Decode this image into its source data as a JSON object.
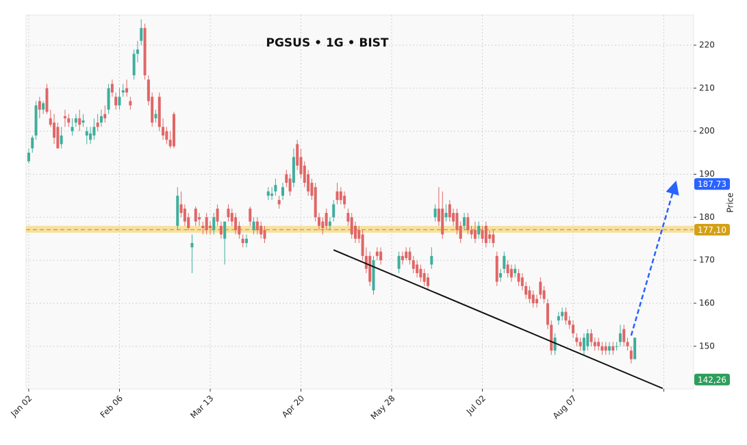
{
  "chart_data": {
    "type": "candlestick",
    "title": "PGSUS • 1G • BIST",
    "y_label": "Price",
    "xlim": [
      -0.75,
      183.2
    ],
    "ylim": [
      140.1,
      227.0
    ],
    "xticks": [
      {
        "value": 0,
        "label": "Jan 02"
      },
      {
        "value": 25,
        "label": "Feb 06"
      },
      {
        "value": 50,
        "label": "Mar 13"
      },
      {
        "value": 75,
        "label": "Apr 20"
      },
      {
        "value": 100,
        "label": "May 28"
      },
      {
        "value": 125,
        "label": "Jul 02"
      },
      {
        "value": 150,
        "label": "Aug 07"
      },
      {
        "value": 175,
        "label": null
      }
    ],
    "yticks": [
      150,
      160,
      170,
      180,
      190,
      200,
      210,
      220
    ],
    "grid": true,
    "up_color": "#3fae9c",
    "down_color": "#e06666",
    "x": [
      0,
      1,
      2,
      3,
      4,
      5,
      6,
      7,
      8,
      9,
      10,
      11,
      12,
      13,
      14,
      15,
      16,
      17,
      18,
      19,
      20,
      21,
      22,
      23,
      24,
      25,
      26,
      27,
      28,
      29,
      30,
      31,
      32,
      33,
      34,
      35,
      36,
      37,
      38,
      39,
      40,
      41,
      42,
      43,
      44,
      45,
      46,
      47,
      48,
      49,
      50,
      51,
      52,
      53,
      54,
      55,
      56,
      57,
      58,
      59,
      60,
      61,
      62,
      63,
      64,
      65,
      66,
      67,
      68,
      69,
      70,
      71,
      72,
      73,
      74,
      75,
      76,
      77,
      78,
      79,
      80,
      81,
      82,
      83,
      84,
      85,
      86,
      87,
      88,
      89,
      90,
      91,
      92,
      93,
      94,
      95,
      96,
      97,
      102,
      103,
      104,
      105,
      106,
      107,
      108,
      109,
      110,
      111,
      112,
      113,
      114,
      115,
      116,
      117,
      118,
      119,
      120,
      121,
      122,
      123,
      124,
      125,
      126,
      127,
      128,
      129,
      130,
      131,
      132,
      133,
      134,
      135,
      136,
      137,
      138,
      139,
      140,
      141,
      142,
      143,
      144,
      145,
      146,
      147,
      148,
      149,
      150,
      151,
      152,
      153,
      154,
      155,
      156,
      157,
      158,
      159,
      160,
      161,
      162,
      163,
      164,
      165,
      166,
      167
    ],
    "open": [
      193,
      196,
      199,
      207,
      205,
      210,
      203,
      202,
      201,
      197,
      203.5,
      203,
      200,
      202,
      203,
      202,
      199,
      198,
      199,
      202,
      202,
      204,
      205,
      211,
      208,
      206,
      209,
      210,
      207,
      213,
      218,
      221,
      224,
      212,
      208,
      203,
      208,
      201,
      200,
      198,
      204,
      178,
      183,
      182,
      180,
      173,
      182,
      180,
      178,
      180,
      178,
      177,
      182,
      178,
      175,
      182,
      181,
      180,
      178,
      175,
      174,
      182,
      177,
      179,
      178,
      177,
      185,
      185,
      186,
      184,
      185,
      190,
      189,
      188,
      197,
      194,
      192,
      190,
      188,
      187,
      180,
      179,
      181,
      178,
      180,
      186,
      186,
      185,
      181,
      180,
      178,
      177,
      176,
      171,
      171,
      163,
      172,
      172,
      168,
      171,
      172,
      172,
      170,
      169,
      168,
      167,
      166,
      169,
      180,
      182,
      182,
      180,
      183,
      181,
      181,
      178,
      178,
      180,
      177,
      177,
      176,
      177,
      178,
      176,
      176,
      171,
      166,
      168,
      169,
      168,
      167,
      167,
      166,
      164,
      163,
      162,
      161,
      165,
      163,
      160,
      155,
      149,
      156,
      157,
      158,
      156,
      155,
      152,
      151,
      149,
      150,
      153,
      151,
      151,
      150,
      150,
      149,
      150,
      150,
      151,
      154,
      151,
      149,
      147
    ],
    "high": [
      196,
      199,
      207,
      208,
      207,
      211,
      205,
      204,
      202,
      201,
      205,
      204,
      203,
      204,
      205,
      204,
      201,
      201,
      203,
      204,
      205,
      206,
      211,
      212,
      209,
      210,
      211,
      212,
      208,
      219,
      221,
      226,
      225,
      213,
      209,
      205,
      209,
      203,
      201,
      200,
      204.5,
      187,
      186,
      183,
      181,
      176,
      182.5,
      181,
      179,
      181,
      179,
      181,
      183,
      179,
      179,
      183,
      182,
      181,
      179,
      176,
      176,
      182.5,
      180,
      180,
      179,
      178,
      187,
      187,
      189,
      185,
      188,
      191,
      190,
      196,
      198,
      196,
      193,
      191,
      189,
      188,
      181,
      180,
      182,
      180,
      184,
      188,
      187,
      186,
      182,
      181,
      179,
      178,
      177,
      173,
      172,
      171,
      173,
      173,
      172,
      172,
      173,
      173,
      171,
      170,
      169,
      168,
      167,
      173,
      183,
      187,
      186,
      183,
      184,
      182,
      182,
      179,
      181,
      181,
      178,
      179,
      179,
      178,
      179,
      177,
      177,
      172,
      168,
      172,
      170,
      169,
      169,
      168,
      167,
      165,
      164,
      163,
      162,
      166,
      164,
      161,
      156,
      153,
      158,
      159,
      159,
      157,
      156,
      153,
      152,
      153,
      154,
      154,
      152,
      152,
      151,
      151,
      151,
      151,
      151,
      155,
      155,
      152,
      150,
      152
    ],
    "low": [
      192.5,
      195,
      198,
      203,
      204,
      204,
      201,
      197,
      196,
      196,
      201,
      201,
      199,
      201,
      200,
      201,
      197,
      197,
      198,
      200,
      201,
      202,
      204,
      208,
      205,
      205,
      208,
      208,
      205,
      212,
      216,
      220,
      212,
      206,
      201,
      202,
      200,
      198,
      197,
      196,
      196,
      177,
      180,
      178,
      177,
      167,
      178,
      178,
      176,
      176,
      176,
      176,
      178,
      175,
      169,
      179,
      178,
      176,
      175,
      173,
      173,
      178,
      176,
      176,
      175,
      174,
      184,
      184,
      185,
      182,
      184,
      187,
      185,
      187,
      191,
      189,
      187,
      185,
      184,
      179,
      177,
      176,
      177,
      177,
      179,
      183,
      183,
      182,
      178,
      175,
      174,
      174,
      170,
      167,
      164,
      162,
      170,
      169,
      167,
      169,
      170,
      169,
      167,
      166,
      165,
      164,
      163,
      168,
      179,
      178,
      175,
      179,
      179,
      178,
      176,
      174,
      177,
      176,
      175,
      174,
      175,
      174,
      173,
      174,
      173,
      164,
      165,
      167,
      166,
      165,
      166,
      164,
      163,
      161,
      160,
      159,
      159,
      161,
      160,
      154,
      148,
      148,
      155,
      156,
      155,
      154,
      152,
      150,
      149,
      148,
      149,
      150,
      149,
      149,
      148,
      148,
      148,
      148,
      149,
      150,
      150,
      149,
      146,
      147
    ],
    "close": [
      195,
      198.5,
      206,
      205,
      206.5,
      204.5,
      201.5,
      198.5,
      196,
      199,
      203,
      202,
      201,
      203,
      201.5,
      202.5,
      200,
      199.5,
      201,
      201,
      203.5,
      203,
      210,
      209,
      206,
      208,
      209.5,
      209,
      206,
      218,
      219,
      224,
      213,
      207,
      202,
      204,
      201,
      199,
      198,
      196.5,
      196.5,
      185,
      181,
      179,
      177.5,
      174,
      179,
      179.5,
      177.5,
      177,
      177.5,
      180,
      179,
      176,
      179,
      180,
      179,
      177,
      176,
      174,
      175,
      179,
      179,
      177,
      176,
      175,
      186,
      185.5,
      187.5,
      183,
      187,
      188,
      186,
      194,
      192,
      190,
      188,
      186,
      185,
      180,
      178,
      177.5,
      178,
      179,
      183,
      184,
      184,
      183,
      179,
      176,
      175,
      175,
      171,
      168,
      165,
      170,
      171,
      170,
      171,
      170,
      170.5,
      170,
      168,
      167,
      166,
      165,
      164,
      171,
      182,
      179,
      176,
      181,
      180,
      179,
      177,
      175,
      180,
      177,
      176,
      175,
      178,
      175,
      174,
      175,
      174,
      165,
      167,
      171,
      167,
      166,
      168,
      165,
      164,
      162,
      161,
      160,
      160,
      162,
      161,
      155,
      149,
      152,
      157,
      158,
      156,
      155,
      153,
      151,
      150,
      152,
      153,
      151,
      150,
      150,
      149,
      149,
      150,
      149,
      150,
      153,
      151,
      150,
      147,
      152
    ],
    "zone": {
      "low": 176.4,
      "high": 178.0,
      "level": 177.1,
      "color": "#f6d77a",
      "line_color": "#d4a017"
    },
    "trendline": {
      "x": [
        84,
        174.7
      ],
      "y": [
        172.4,
        140.2
      ],
      "color": "#111111"
    },
    "projection": {
      "x": [
        166,
        177.9
      ],
      "y": [
        152.5,
        187.0
      ],
      "color": "#2962ff"
    },
    "price_labels": [
      {
        "value": 187.73,
        "label": "187,73",
        "color": "#2962ff"
      },
      {
        "value": 177.1,
        "label": "177,10",
        "color": "#d4a017"
      },
      {
        "value": 142.26,
        "label": "142,26",
        "color": "#2e9e5b"
      }
    ]
  }
}
